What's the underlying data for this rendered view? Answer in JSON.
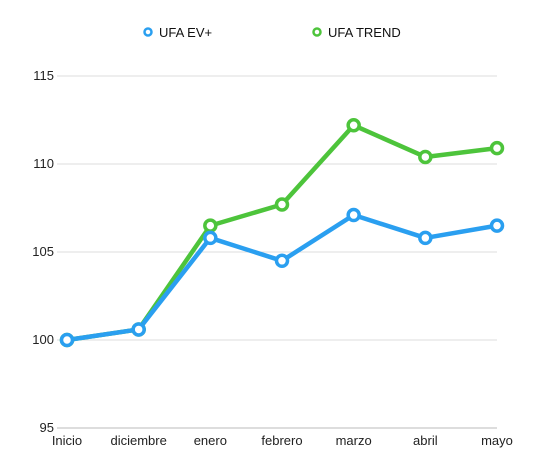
{
  "chart_data": {
    "type": "line",
    "categories": [
      "Inicio",
      "diciembre",
      "enero",
      "febrero",
      "marzo",
      "abril",
      "mayo"
    ],
    "series": [
      {
        "name": "UFA EV+",
        "color": "#2a9ff0",
        "values": [
          100.0,
          100.6,
          105.8,
          104.5,
          107.1,
          105.8,
          106.5
        ]
      },
      {
        "name": "UFA TREND",
        "color": "#4dc43b",
        "values": [
          100.0,
          100.6,
          106.5,
          107.7,
          112.2,
          110.4,
          110.9
        ]
      }
    ],
    "yticks": [
      95,
      100,
      105,
      110,
      115
    ],
    "ylim": [
      95,
      115
    ],
    "grid": true,
    "legend_position": "top-center"
  }
}
